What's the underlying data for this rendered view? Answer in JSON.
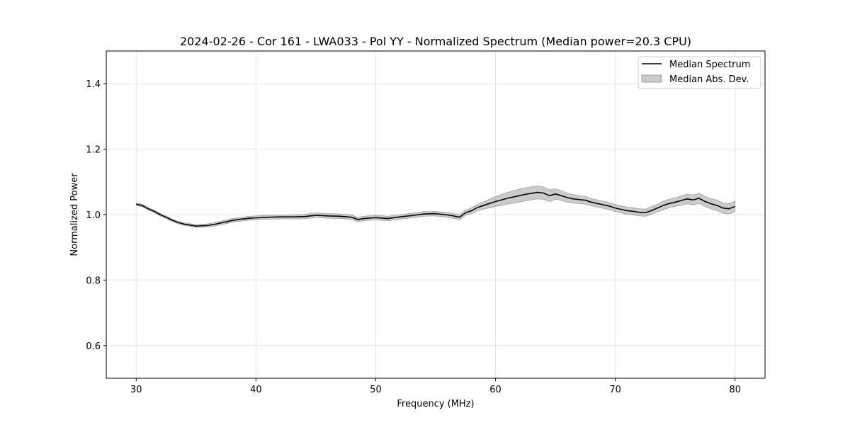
{
  "chart_data": {
    "type": "line",
    "title": "2024-02-26 - Cor 161 - LWA033 - Pol YY - Normalized Spectrum (Median power=20.3 CPU)",
    "xlabel": "Frequency (MHz)",
    "ylabel": "Normalized Power",
    "xlim": [
      27.5,
      82.5
    ],
    "ylim": [
      0.5,
      1.5
    ],
    "xticks": [
      30,
      40,
      50,
      60,
      70,
      80
    ],
    "yticks": [
      0.6,
      0.8,
      1.0,
      1.2,
      1.4
    ],
    "ytick_labels": [
      "0.6",
      "0.8",
      "1.0",
      "1.2",
      "1.4"
    ],
    "grid": true,
    "legend": {
      "position": "top-right",
      "entries": [
        {
          "label": "Median Spectrum",
          "kind": "line",
          "color": "#000000"
        },
        {
          "label": "Median Abs. Dev.",
          "kind": "band",
          "color": "#a0a0a0"
        }
      ]
    },
    "series": [
      {
        "name": "Median Spectrum",
        "color": "#000000",
        "x": [
          30,
          30.5,
          31,
          31.5,
          32,
          32.5,
          33,
          33.5,
          34,
          34.5,
          35,
          35.5,
          36,
          36.5,
          37,
          37.5,
          38,
          38.5,
          39,
          39.5,
          40,
          41,
          42,
          43,
          44,
          45,
          46,
          47,
          48,
          48.5,
          49,
          50,
          51,
          52,
          53,
          54,
          55,
          56,
          56.5,
          57,
          57.5,
          58,
          58.5,
          59,
          59.5,
          60,
          60.5,
          61,
          61.5,
          62,
          62.5,
          63,
          63.5,
          64,
          64.5,
          65,
          65.5,
          66,
          66.5,
          67,
          67.5,
          68,
          68.5,
          69,
          69.5,
          70,
          70.5,
          71,
          71.5,
          72,
          72.5,
          73,
          73.5,
          74,
          74.5,
          75,
          75.5,
          76,
          76.5,
          77,
          77.5,
          78,
          78.5,
          79,
          79.5,
          80
        ],
        "values": [
          1.032,
          1.028,
          1.018,
          1.01,
          1.0,
          0.992,
          0.983,
          0.976,
          0.971,
          0.968,
          0.965,
          0.966,
          0.967,
          0.97,
          0.974,
          0.978,
          0.982,
          0.985,
          0.987,
          0.989,
          0.99,
          0.992,
          0.993,
          0.993,
          0.994,
          0.998,
          0.996,
          0.995,
          0.992,
          0.985,
          0.988,
          0.991,
          0.988,
          0.993,
          0.997,
          1.002,
          1.003,
          0.999,
          0.996,
          0.992,
          1.006,
          1.012,
          1.022,
          1.028,
          1.034,
          1.04,
          1.045,
          1.05,
          1.054,
          1.058,
          1.062,
          1.065,
          1.068,
          1.066,
          1.058,
          1.063,
          1.058,
          1.052,
          1.048,
          1.046,
          1.044,
          1.038,
          1.034,
          1.03,
          1.026,
          1.02,
          1.016,
          1.012,
          1.01,
          1.007,
          1.006,
          1.012,
          1.02,
          1.028,
          1.034,
          1.038,
          1.043,
          1.048,
          1.045,
          1.05,
          1.04,
          1.033,
          1.028,
          1.02,
          1.018,
          1.025
        ]
      },
      {
        "name": "Median Abs. Dev.",
        "color": "#a0a0a0",
        "x": [
          30,
          32,
          34,
          36,
          38,
          40,
          42,
          44,
          46,
          48,
          50,
          52,
          54,
          56,
          57,
          57.5,
          58,
          58.5,
          59,
          59.5,
          60,
          60.5,
          61,
          61.5,
          62,
          62.5,
          63,
          63.5,
          64,
          64.5,
          65,
          65.5,
          66,
          66.5,
          67,
          67.5,
          68,
          68.5,
          69,
          69.5,
          70,
          70.5,
          71,
          71.5,
          72,
          72.5,
          73,
          73.5,
          74,
          74.5,
          75,
          75.5,
          76,
          76.5,
          77,
          77.5,
          78,
          78.5,
          79,
          79.5,
          80
        ],
        "values": [
          0.004,
          0.004,
          0.004,
          0.005,
          0.006,
          0.006,
          0.006,
          0.007,
          0.007,
          0.007,
          0.007,
          0.007,
          0.007,
          0.007,
          0.008,
          0.008,
          0.009,
          0.01,
          0.011,
          0.013,
          0.015,
          0.017,
          0.018,
          0.019,
          0.02,
          0.02,
          0.02,
          0.02,
          0.019,
          0.018,
          0.016,
          0.015,
          0.014,
          0.013,
          0.012,
          0.012,
          0.011,
          0.011,
          0.011,
          0.011,
          0.011,
          0.011,
          0.011,
          0.011,
          0.011,
          0.011,
          0.012,
          0.012,
          0.013,
          0.013,
          0.013,
          0.014,
          0.015,
          0.015,
          0.016,
          0.016,
          0.016,
          0.016,
          0.016,
          0.016,
          0.016
        ]
      }
    ]
  }
}
